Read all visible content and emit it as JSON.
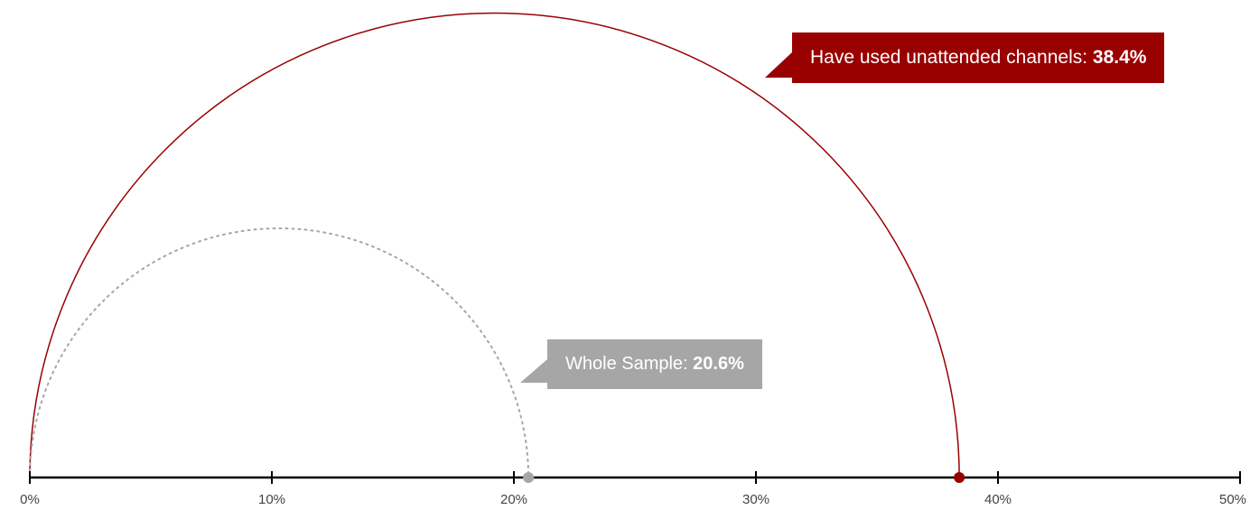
{
  "colors": {
    "group": "#990000",
    "whole": "#a6a6a6",
    "axis": "#000000",
    "tick_text": "#444444"
  },
  "chart_data": {
    "type": "semicircle-arc",
    "xlim": [
      0,
      50
    ],
    "ticks": [
      "0%",
      "10%",
      "20%",
      "30%",
      "40%",
      "50%"
    ],
    "tick_values": [
      0,
      10,
      20,
      30,
      40,
      50
    ],
    "series": [
      {
        "key": "group",
        "name": "Have used unattended channels",
        "value": 38.4,
        "value_label": "38.4%",
        "style": "solid"
      },
      {
        "key": "whole",
        "name": "Whole Sample",
        "value": 20.6,
        "value_label": "20.6%",
        "style": "dotted"
      }
    ]
  },
  "callouts": {
    "group": {
      "label": "Have used unattended channels: ",
      "value": "38.4%"
    },
    "whole": {
      "label": "Whole Sample: ",
      "value": "20.6%"
    }
  }
}
